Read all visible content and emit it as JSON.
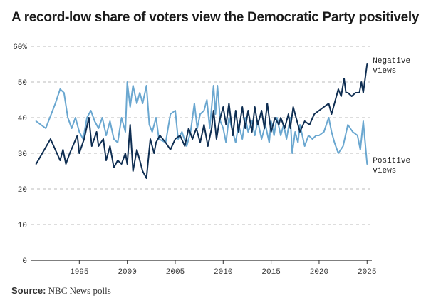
{
  "title": "A record-low share of voters view the Democratic Party positively",
  "source": {
    "label": "Source:",
    "text": "NBC News polls"
  },
  "colors": {
    "negative": "#0f2e52",
    "positive": "#6aa7d0",
    "grid": "#bbbbbb",
    "axis": "#333333"
  },
  "chart_data": {
    "type": "line",
    "title": "A record-low share of voters view the Democratic Party positively",
    "xlabel": "",
    "ylabel": "",
    "xlim": [
      1990,
      2025.5
    ],
    "ylim": [
      0,
      60
    ],
    "x_ticks": [
      1995,
      2000,
      2005,
      2010,
      2015,
      2020,
      2025
    ],
    "y_ticks": [
      {
        "value": 0,
        "label": "0"
      },
      {
        "value": 10,
        "label": "10"
      },
      {
        "value": 20,
        "label": "20"
      },
      {
        "value": 30,
        "label": "30"
      },
      {
        "value": 40,
        "label": "40"
      },
      {
        "value": 50,
        "label": "50"
      },
      {
        "value": 60,
        "label": "60%"
      }
    ],
    "grid": "horizontal dashed",
    "series": [
      {
        "name": "Negative views",
        "label_lines": [
          "Negative",
          "views"
        ],
        "color": "#0f2e52",
        "points": [
          [
            1990.5,
            27
          ],
          [
            1992,
            34
          ],
          [
            1993,
            28
          ],
          [
            1993.3,
            31
          ],
          [
            1993.6,
            27
          ],
          [
            1994,
            30
          ],
          [
            1994.8,
            35
          ],
          [
            1995,
            30
          ],
          [
            1995.5,
            34
          ],
          [
            1996,
            40
          ],
          [
            1996.3,
            32
          ],
          [
            1996.8,
            36
          ],
          [
            1997,
            32
          ],
          [
            1997.5,
            34
          ],
          [
            1997.8,
            28
          ],
          [
            1998.2,
            32
          ],
          [
            1998.6,
            26
          ],
          [
            1999,
            28
          ],
          [
            1999.4,
            27
          ],
          [
            1999.8,
            30
          ],
          [
            2000,
            27
          ],
          [
            2000.3,
            38
          ],
          [
            2000.6,
            25
          ],
          [
            2001,
            31
          ],
          [
            2001.3,
            28
          ],
          [
            2001.6,
            25
          ],
          [
            2002,
            23
          ],
          [
            2002.4,
            34
          ],
          [
            2002.8,
            30
          ],
          [
            2003,
            33
          ],
          [
            2003.4,
            35
          ],
          [
            2004,
            33
          ],
          [
            2004.5,
            31
          ],
          [
            2005,
            34
          ],
          [
            2005.5,
            35
          ],
          [
            2006,
            32
          ],
          [
            2006.4,
            37
          ],
          [
            2006.8,
            34
          ],
          [
            2007.2,
            37
          ],
          [
            2007.6,
            33
          ],
          [
            2008,
            38
          ],
          [
            2008.4,
            32
          ],
          [
            2008.8,
            37
          ],
          [
            2009,
            42
          ],
          [
            2009.3,
            34
          ],
          [
            2009.6,
            39
          ],
          [
            2010,
            43
          ],
          [
            2010.3,
            38
          ],
          [
            2010.6,
            44
          ],
          [
            2011,
            35
          ],
          [
            2011.3,
            42
          ],
          [
            2011.6,
            36
          ],
          [
            2012,
            43
          ],
          [
            2012.3,
            37
          ],
          [
            2012.6,
            42
          ],
          [
            2013,
            36
          ],
          [
            2013.3,
            43
          ],
          [
            2013.6,
            38
          ],
          [
            2014,
            42
          ],
          [
            2014.3,
            37
          ],
          [
            2014.6,
            44
          ],
          [
            2015,
            36
          ],
          [
            2015.4,
            40
          ],
          [
            2015.8,
            38
          ],
          [
            2016,
            40
          ],
          [
            2016.4,
            37
          ],
          [
            2016.8,
            41
          ],
          [
            2017,
            37
          ],
          [
            2017.3,
            43
          ],
          [
            2017.6,
            40
          ],
          [
            2018,
            36
          ],
          [
            2018.5,
            39
          ],
          [
            2019,
            38
          ],
          [
            2019.5,
            41
          ],
          [
            2020,
            42
          ],
          [
            2020.5,
            43
          ],
          [
            2021,
            44
          ],
          [
            2021.3,
            41
          ],
          [
            2021.6,
            44
          ],
          [
            2022,
            48
          ],
          [
            2022.3,
            46
          ],
          [
            2022.6,
            51
          ],
          [
            2022.8,
            47
          ],
          [
            2023,
            47
          ],
          [
            2023.4,
            46
          ],
          [
            2023.8,
            47
          ],
          [
            2024.2,
            47
          ],
          [
            2024.4,
            50
          ],
          [
            2024.6,
            47
          ],
          [
            2025,
            55
          ]
        ]
      },
      {
        "name": "Positive views",
        "label_lines": [
          "Positive",
          "views"
        ],
        "color": "#6aa7d0",
        "points": [
          [
            1990.5,
            39
          ],
          [
            1991.5,
            37
          ],
          [
            1992.5,
            44
          ],
          [
            1993,
            48
          ],
          [
            1993.4,
            47
          ],
          [
            1993.8,
            40
          ],
          [
            1994.2,
            37
          ],
          [
            1994.6,
            40
          ],
          [
            1995,
            36
          ],
          [
            1995.4,
            34
          ],
          [
            1995.8,
            40
          ],
          [
            1996.2,
            42
          ],
          [
            1996.6,
            39
          ],
          [
            1997,
            37
          ],
          [
            1997.4,
            40
          ],
          [
            1997.8,
            35
          ],
          [
            1998.2,
            39
          ],
          [
            1998.6,
            34
          ],
          [
            1999,
            33
          ],
          [
            1999.4,
            40
          ],
          [
            1999.8,
            36
          ],
          [
            2000,
            50
          ],
          [
            2000.3,
            43
          ],
          [
            2000.6,
            49
          ],
          [
            2001,
            44
          ],
          [
            2001.3,
            47
          ],
          [
            2001.6,
            44
          ],
          [
            2002,
            49
          ],
          [
            2002.3,
            38
          ],
          [
            2002.6,
            36
          ],
          [
            2003,
            40
          ],
          [
            2003.3,
            34
          ],
          [
            2004,
            33
          ],
          [
            2004.5,
            41
          ],
          [
            2005,
            42
          ],
          [
            2005.3,
            34
          ],
          [
            2005.7,
            36
          ],
          [
            2006.2,
            32
          ],
          [
            2006.6,
            36
          ],
          [
            2007,
            44
          ],
          [
            2007.3,
            37
          ],
          [
            2007.6,
            41
          ],
          [
            2008,
            42
          ],
          [
            2008.3,
            45
          ],
          [
            2008.6,
            37
          ],
          [
            2009,
            49
          ],
          [
            2009.2,
            41
          ],
          [
            2009.4,
            49
          ],
          [
            2009.7,
            39
          ],
          [
            2010,
            37
          ],
          [
            2010.3,
            33
          ],
          [
            2010.6,
            40
          ],
          [
            2011,
            36
          ],
          [
            2011.3,
            33
          ],
          [
            2011.6,
            38
          ],
          [
            2012,
            34
          ],
          [
            2012.3,
            40
          ],
          [
            2012.6,
            36
          ],
          [
            2013,
            39
          ],
          [
            2013.3,
            35
          ],
          [
            2013.6,
            39
          ],
          [
            2014,
            34
          ],
          [
            2014.4,
            38
          ],
          [
            2014.8,
            33
          ],
          [
            2015,
            39
          ],
          [
            2015.3,
            35
          ],
          [
            2015.6,
            40
          ],
          [
            2016,
            35
          ],
          [
            2016.3,
            38
          ],
          [
            2016.6,
            34
          ],
          [
            2017,
            40
          ],
          [
            2017.2,
            30
          ],
          [
            2017.5,
            36
          ],
          [
            2017.8,
            33
          ],
          [
            2018,
            38
          ],
          [
            2018.5,
            32
          ],
          [
            2018.9,
            35
          ],
          [
            2019.3,
            34
          ],
          [
            2019.7,
            35
          ],
          [
            2020,
            35
          ],
          [
            2020.5,
            36
          ],
          [
            2021,
            40
          ],
          [
            2021.3,
            36
          ],
          [
            2021.6,
            33
          ],
          [
            2022,
            30
          ],
          [
            2022.5,
            32
          ],
          [
            2023,
            38
          ],
          [
            2023.5,
            36
          ],
          [
            2024,
            35
          ],
          [
            2024.3,
            31
          ],
          [
            2024.6,
            39
          ],
          [
            2025,
            27
          ]
        ]
      }
    ]
  }
}
